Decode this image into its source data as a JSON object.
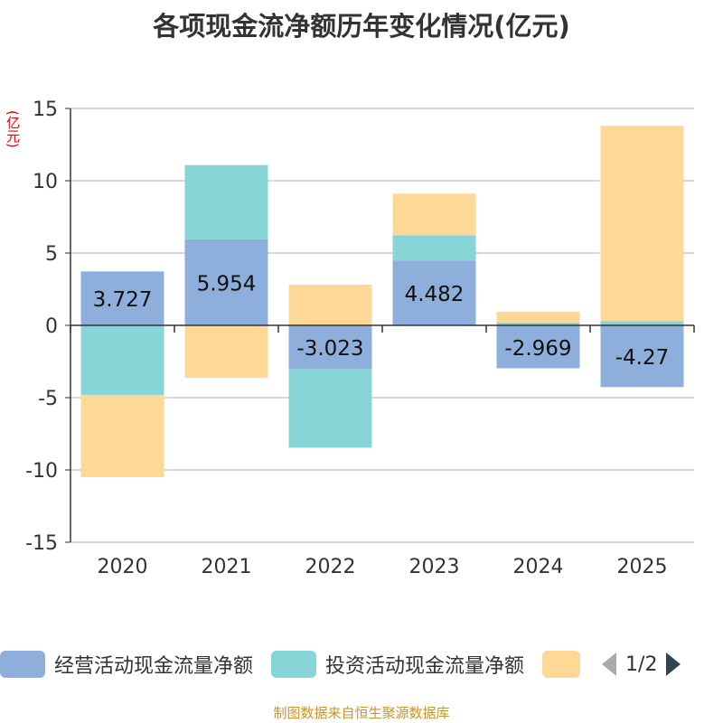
{
  "title": "各项现金流净额历年变化情况(亿元)",
  "source": "制图数据来自恒生聚源数据库",
  "chart_data": {
    "type": "bar",
    "stacked": true,
    "title": "各项现金流净额历年变化情况(亿元)",
    "ylabel": "(亿元)",
    "ylim": [
      -15,
      15
    ],
    "yticks": [
      15,
      10,
      5,
      0,
      -5,
      -10,
      -15
    ],
    "grid": true,
    "legend_position": "bottom",
    "categories": [
      "2020",
      "2021",
      "2022",
      "2023",
      "2024",
      "2025"
    ],
    "series": [
      {
        "name": "经营活动现金流量净额",
        "color": "#8eaedb",
        "values": [
          3.727,
          5.954,
          -3.023,
          4.482,
          -2.969,
          -4.27
        ],
        "show_labels": true
      },
      {
        "name": "投资活动现金流量净额",
        "color": "#88d5d8",
        "values": [
          -4.81,
          5.13,
          -5.44,
          1.75,
          0.2,
          0.3
        ]
      },
      {
        "color": "#fed897",
        "values": [
          -5.69,
          -3.63,
          2.81,
          2.88,
          0.75,
          13.5
        ]
      }
    ]
  },
  "legend": {
    "page": "1/2"
  }
}
